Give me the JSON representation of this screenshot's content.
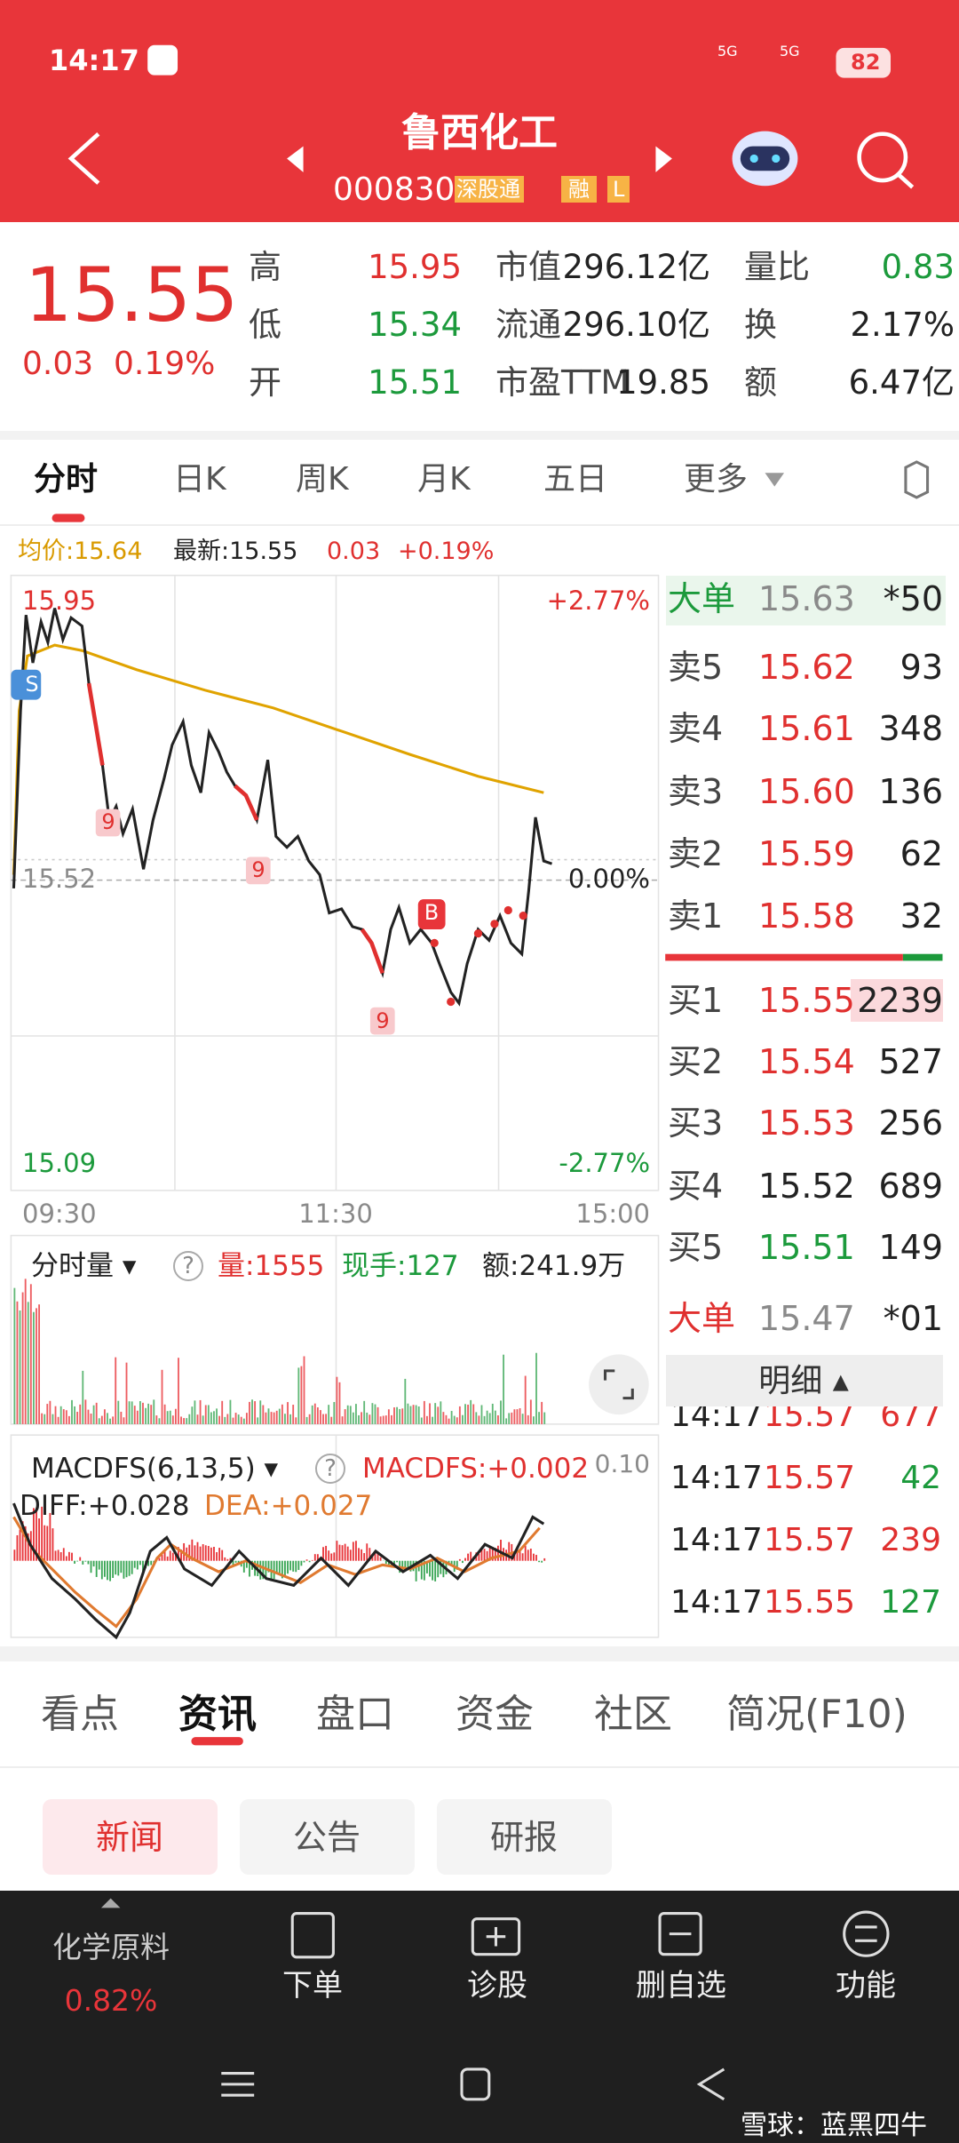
{
  "status_bar": {
    "time": "14:17",
    "network": [
      "5G",
      "5G"
    ],
    "battery": "82"
  },
  "header": {
    "title": "鲁西化工",
    "code": "000830",
    "tags": [
      "深股通",
      "融",
      "L"
    ]
  },
  "quote": {
    "price": "15.55",
    "change": "0.03",
    "change_pct": "0.19%",
    "stats": [
      [
        {
          "label": "高",
          "value": "15.95"
        },
        {
          "label": "市值",
          "value": "296.12亿"
        },
        {
          "label": "量比",
          "value": "0.83"
        }
      ],
      [
        {
          "label": "低",
          "value": "15.34"
        },
        {
          "label": "流通",
          "value": "296.10亿"
        },
        {
          "label": "换",
          "value": "2.17%"
        }
      ],
      [
        {
          "label": "开",
          "value": "15.51"
        },
        {
          "label": "市盈TTM",
          "value": "19.85"
        },
        {
          "label": "额",
          "value": "6.47亿"
        }
      ]
    ]
  },
  "chart_tabs": [
    "分时",
    "日K",
    "周K",
    "月K",
    "五日",
    "更多"
  ],
  "info_line": {
    "avg": "均价:15.64",
    "latest": "最新:15.55",
    "change": "0.03",
    "change_pct": "+0.19%"
  },
  "intraday": {
    "high": "15.95",
    "high_pct": "+2.77%",
    "base": "15.52",
    "base_pct": "0.00%",
    "low": "15.09",
    "low_pct": "-2.77%",
    "times": [
      "09:30",
      "11:30",
      "15:00"
    ],
    "markers": [
      "S",
      "9",
      "9",
      "9",
      "B"
    ]
  },
  "order_book": {
    "top_big": {
      "label": "大单",
      "price": "15.63",
      "volume": "*50"
    },
    "asks": [
      {
        "label": "卖5",
        "price": "15.62",
        "volume": "93"
      },
      {
        "label": "卖4",
        "price": "15.61",
        "volume": "348"
      },
      {
        "label": "卖3",
        "price": "15.60",
        "volume": "136"
      },
      {
        "label": "卖2",
        "price": "15.59",
        "volume": "62"
      },
      {
        "label": "卖1",
        "price": "15.58",
        "volume": "32"
      }
    ],
    "bids": [
      {
        "label": "买1",
        "price": "15.55",
        "volume": "2239"
      },
      {
        "label": "买2",
        "price": "15.54",
        "volume": "527"
      },
      {
        "label": "买3",
        "price": "15.53",
        "volume": "256"
      },
      {
        "label": "买4",
        "price": "15.52",
        "volume": "689"
      },
      {
        "label": "买5",
        "price": "15.51",
        "volume": "149"
      }
    ],
    "bottom_big": {
      "label": "大单",
      "price": "15.47",
      "volume": "*01"
    },
    "detail_label": "明细"
  },
  "trades": [
    {
      "time": "14:17",
      "price": "15.57",
      "volume": "677"
    },
    {
      "time": "14:17",
      "price": "15.57",
      "volume": "42"
    },
    {
      "time": "14:17",
      "price": "15.57",
      "volume": "239"
    },
    {
      "time": "14:17",
      "price": "15.55",
      "volume": "127"
    }
  ],
  "volume_panel": {
    "title": "分时量",
    "volume": "量:1555",
    "hand": "现手:127",
    "amount": "额:241.9万"
  },
  "macd_panel": {
    "title": "MACDFS(6,13,5)",
    "macd": "MACDFS:+0.002",
    "scale": "0.10",
    "diff": "DIFF:+0.028",
    "dea": "DEA:+0.027"
  },
  "section_tabs": [
    "看点",
    "资讯",
    "盘口",
    "资金",
    "社区",
    "简况(F10)"
  ],
  "sub_tabs": [
    "新闻",
    "公告",
    "研报"
  ],
  "toolbar": {
    "sector": "化学原料",
    "sector_change": "0.82%",
    "items": [
      "下单",
      "诊股",
      "删自选",
      "功能"
    ]
  },
  "watermark": "雪球：蓝黑四牛"
}
